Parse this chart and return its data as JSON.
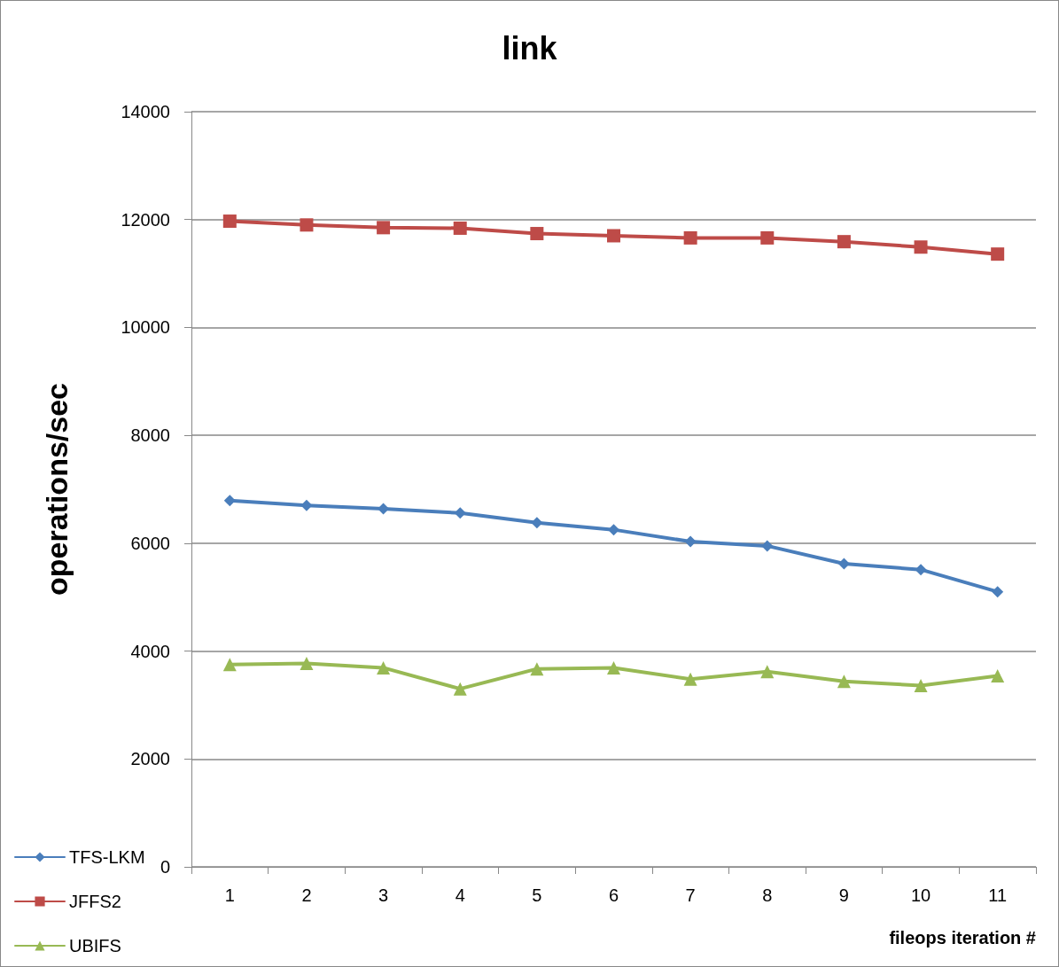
{
  "chart_data": {
    "type": "line",
    "title": "link",
    "xlabel": "fileops iteration #",
    "ylabel": "operations/sec",
    "categories": [
      "1",
      "2",
      "3",
      "4",
      "5",
      "6",
      "7",
      "8",
      "9",
      "10",
      "11"
    ],
    "series": [
      {
        "name": "TFS-LKM",
        "color": "#4a7ebb",
        "marker": "diamond",
        "values": [
          6790,
          6700,
          6640,
          6560,
          6380,
          6250,
          6030,
          5950,
          5620,
          5510,
          5100
        ]
      },
      {
        "name": "JFFS2",
        "color": "#be4b48",
        "marker": "square",
        "values": [
          11970,
          11900,
          11850,
          11840,
          11740,
          11700,
          11660,
          11660,
          11590,
          11490,
          11360
        ]
      },
      {
        "name": "UBIFS",
        "color": "#98b954",
        "marker": "triangle",
        "values": [
          3750,
          3770,
          3690,
          3300,
          3670,
          3690,
          3480,
          3620,
          3440,
          3360,
          3540
        ]
      }
    ],
    "ylim": [
      0,
      14000
    ],
    "yticks": [
      0,
      2000,
      4000,
      6000,
      8000,
      10000,
      12000,
      14000
    ],
    "grid": "y",
    "legend": "bottom left",
    "line_style": "solid"
  }
}
